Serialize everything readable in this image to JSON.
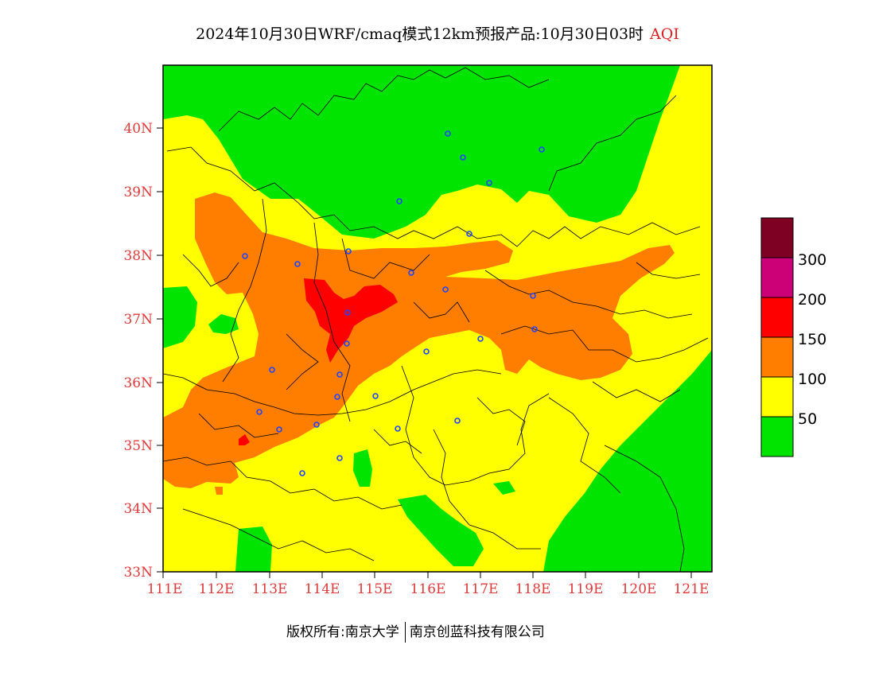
{
  "title": {
    "main": "2024年10月30日WRF/cmaq模式12km预报产品:10月30日03时",
    "tag": "AQI"
  },
  "map": {
    "lat_labels": [
      "40N",
      "39N",
      "38N",
      "37N",
      "36N",
      "35N",
      "34N",
      "33N"
    ],
    "lon_labels": [
      "111E",
      "112E",
      "113E",
      "114E",
      "115E",
      "116E",
      "117E",
      "118E",
      "119E",
      "120E",
      "121E"
    ],
    "lat_range": [
      33,
      41
    ],
    "lon_range": [
      111,
      121.4
    ],
    "colors": {
      "good": "#00e400",
      "moderate": "#ffff00",
      "usg": "#ff7e00",
      "unhealthy": "#ff0000",
      "very_unhealthy": "#cc0077",
      "hazardous": "#7e0023",
      "city_marker": "#2244ff",
      "label": "#e03a3a"
    }
  },
  "legend": {
    "labels": [
      "300",
      "200",
      "150",
      "100",
      "50"
    ],
    "levels": [
      0,
      50,
      100,
      150,
      200,
      300
    ]
  },
  "footer": {
    "left": "版权所有:南京大学",
    "right": "南京创蓝科技有限公司"
  }
}
